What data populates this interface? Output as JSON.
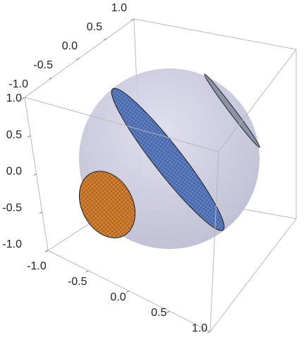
{
  "chart_data": {
    "type": "surface3d",
    "xlim": [
      -1,
      1
    ],
    "xticks": [
      {
        "value": -1,
        "label": "-1.0"
      },
      {
        "value": -0.5,
        "label": "-0.5"
      },
      {
        "value": 0,
        "label": "0.0"
      },
      {
        "value": 0.5,
        "label": "0.5"
      },
      {
        "value": 1,
        "label": "1.0"
      }
    ],
    "ylim": [
      -1,
      1
    ],
    "yticks": [
      {
        "value": -1,
        "label": "-1.0"
      },
      {
        "value": -0.5,
        "label": "-0.5"
      },
      {
        "value": 0,
        "label": "0.0"
      },
      {
        "value": 0.5,
        "label": "0.5"
      },
      {
        "value": 1,
        "label": "1.0"
      }
    ],
    "zlim": [
      -1,
      1
    ],
    "zticks": [
      {
        "value": -1,
        "label": "-1.0"
      },
      {
        "value": -0.5,
        "label": "-0.5"
      },
      {
        "value": 0,
        "label": "0.0"
      },
      {
        "value": 0.5,
        "label": "0.5"
      },
      {
        "value": 1,
        "label": "1.0"
      }
    ]
  }
}
